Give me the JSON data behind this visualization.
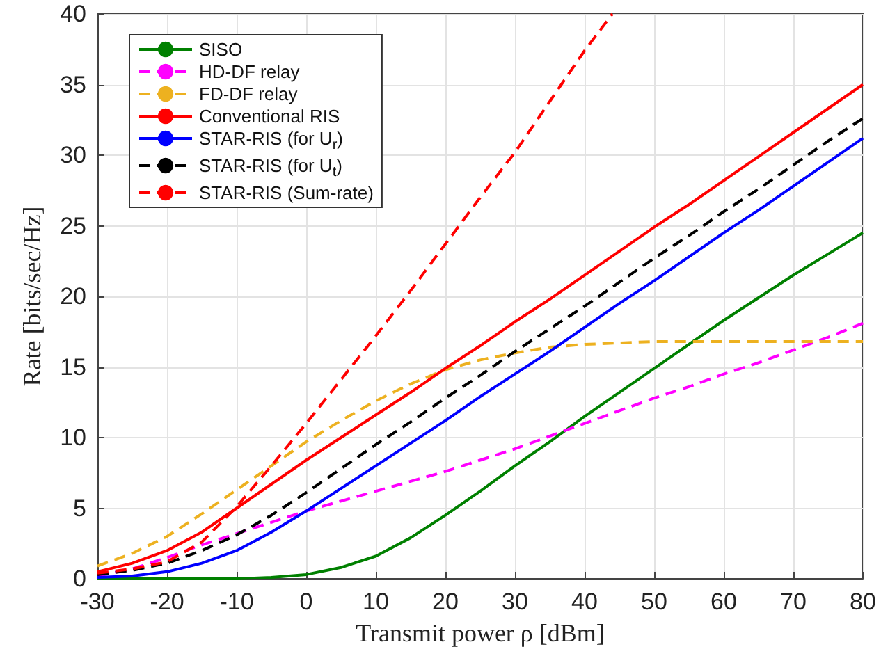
{
  "chart_data": {
    "type": "line",
    "xlabel": "Transmit power ρ [dBm]",
    "ylabel": "Rate [bits/sec/Hz]",
    "x": [
      -30,
      -25,
      -20,
      -15,
      -10,
      -5,
      0,
      5,
      10,
      15,
      20,
      25,
      30,
      35,
      40,
      45,
      50,
      55,
      60,
      65,
      70,
      75,
      80
    ],
    "xlim": [
      -30,
      80
    ],
    "xticks": [
      -30,
      -20,
      -10,
      0,
      10,
      20,
      30,
      40,
      50,
      60,
      70,
      80
    ],
    "ylim": [
      0,
      40
    ],
    "yticks": [
      0,
      5,
      10,
      15,
      20,
      25,
      30,
      35,
      40
    ],
    "grid": true,
    "legend": "top left",
    "marker": "none",
    "series": [
      {
        "name": "SISO",
        "color": "#008000",
        "line_style": "solid",
        "values": [
          0,
          0,
          0,
          0,
          0,
          0.1,
          0.3,
          0.8,
          1.6,
          2.9,
          4.5,
          6.2,
          8,
          9.7,
          11.5,
          13.2,
          14.9,
          16.6,
          18.3,
          19.9,
          21.5,
          23,
          24.5
        ]
      },
      {
        "name": "HD-DF relay",
        "color": "#ff00ff",
        "line_style": "dashed",
        "values": [
          0.2,
          0.7,
          1.5,
          2.4,
          3.2,
          4,
          4.8,
          5.5,
          6.2,
          6.9,
          7.6,
          8.4,
          9.2,
          10.1,
          11,
          11.9,
          12.8,
          13.6,
          14.5,
          15.3,
          16.2,
          17.1,
          18.1
        ]
      },
      {
        "name": "FD-DF relay",
        "color": "#edb120",
        "line_style": "dashed",
        "values": [
          0.9,
          1.8,
          3,
          4.6,
          6.3,
          8,
          9.7,
          11.2,
          12.6,
          13.8,
          14.8,
          15.5,
          16,
          16.4,
          16.6,
          16.7,
          16.8,
          16.8,
          16.8,
          16.8,
          16.8,
          16.8,
          16.8
        ]
      },
      {
        "name": "Conventional RIS",
        "color": "#ff0000",
        "line_style": "solid",
        "values": [
          0.5,
          1.1,
          2,
          3.3,
          5,
          6.7,
          8.4,
          10,
          11.6,
          13.2,
          14.9,
          16.5,
          18.2,
          19.8,
          21.5,
          23.2,
          24.9,
          26.5,
          28.2,
          29.9,
          31.6,
          33.3,
          35
        ]
      },
      {
        "name": "STAR-RIS (for U$_{r}$)",
        "color": "#0000ff",
        "line_style": "solid",
        "values": [
          0.1,
          0.2,
          0.5,
          1.1,
          2,
          3.3,
          4.8,
          6.4,
          8,
          9.6,
          11.2,
          12.9,
          14.5,
          16.1,
          17.8,
          19.5,
          21.1,
          22.8,
          24.5,
          26.1,
          27.8,
          29.5,
          31.2
        ]
      },
      {
        "name": "STAR-RIS (for U$_{t}$)",
        "color": "#000000",
        "line_style": "dashed",
        "values": [
          0.3,
          0.6,
          1.1,
          2,
          3.1,
          4.5,
          6.1,
          7.8,
          9.5,
          11.1,
          12.8,
          14.4,
          16.1,
          17.7,
          19.3,
          21,
          22.7,
          24.3,
          26,
          27.6,
          29.3,
          31,
          32.6
        ]
      },
      {
        "name": "STAR-RIS (Sum-rate)",
        "color": "#ff0000",
        "line_style": "dashed",
        "x": [
          -30,
          -25,
          -20,
          -15,
          -10,
          -5,
          0,
          5,
          10,
          15,
          20,
          25,
          30,
          35,
          40,
          44
        ],
        "values": [
          0.4,
          0.7,
          1.2,
          2.6,
          5.1,
          8,
          11,
          14.1,
          17.2,
          20.4,
          23.7,
          27,
          30.2,
          33.8,
          37.4,
          40
        ]
      }
    ]
  }
}
